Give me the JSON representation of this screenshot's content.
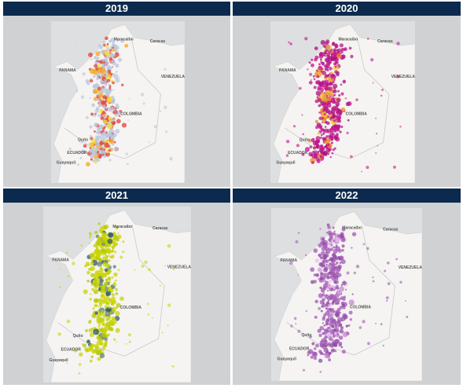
{
  "panels": [
    {
      "title": "2019",
      "colors": [
        "#b9c6de",
        "#e0423a",
        "#f5a623",
        "#f7e03a"
      ]
    },
    {
      "title": "2020",
      "colors": [
        "#c0168c",
        "#a3117a",
        "#f08a2a",
        "#f5c33a"
      ]
    },
    {
      "title": "2021",
      "colors": [
        "#c9d400",
        "#b5c800",
        "#2f5a68",
        "#5b7d8a"
      ]
    },
    {
      "title": "2022",
      "colors": [
        "#a35bb5",
        "#8f4aa3",
        "#c58ad2",
        "#e7c4ee"
      ]
    }
  ],
  "labels": [
    "PANAMA",
    "COLOMBIA",
    "ECUADOR",
    "Quito",
    "Guayaquil",
    "Maracaibo",
    "Caracas",
    "VENEZUELA"
  ]
}
